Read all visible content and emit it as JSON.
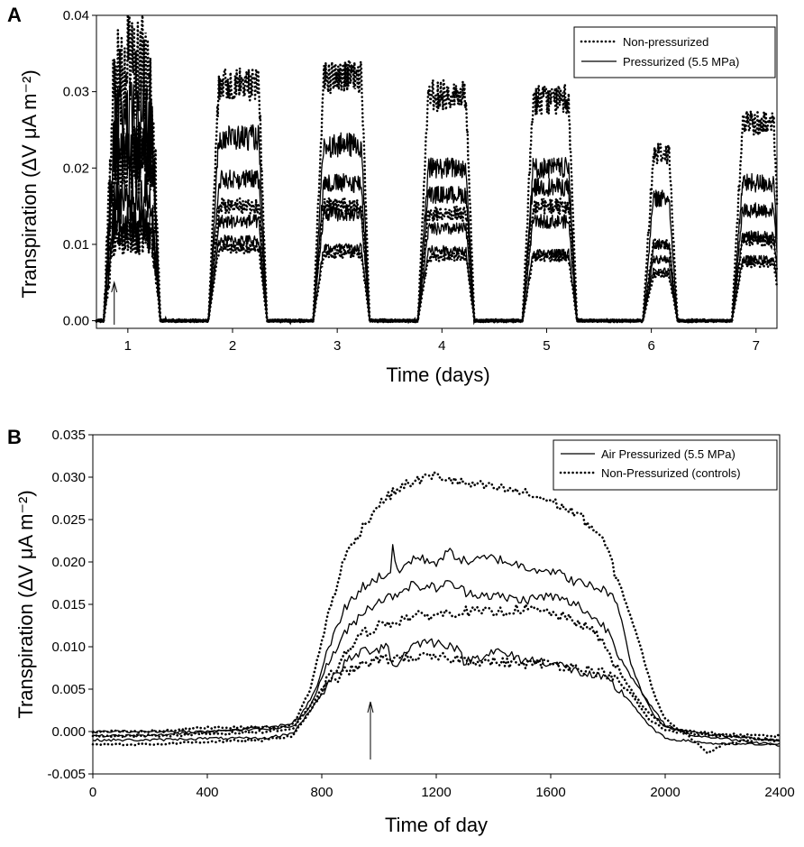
{
  "chart_data": [
    {
      "panel": "A",
      "type": "line",
      "title": "",
      "xlabel": "Time (days)",
      "ylabel": "Transpiration (ΔV μA m⁻²)",
      "xlim": [
        0.7,
        7.2
      ],
      "ylim": [
        -0.001,
        0.04
      ],
      "x_ticks": [
        "1",
        "2",
        "3",
        "4",
        "5",
        "6",
        "7"
      ],
      "y_ticks": [
        "0.00",
        "0.01",
        "0.02",
        "0.03",
        "0.04"
      ],
      "legend": {
        "position": "top-right",
        "entries": [
          "Non-pressurized",
          "Pressurized (5.5 MPa)"
        ]
      },
      "annotation": {
        "type": "arrow",
        "x": 0.87,
        "description": "time of pressurization"
      },
      "series_shape": {
        "x_unit": "days",
        "day_on_offsets": [
          0.8,
          1.8,
          2.8,
          3.8,
          4.8,
          5.95,
          6.8
        ],
        "day_off_offsets": [
          1.28,
          2.3,
          3.28,
          4.28,
          5.26,
          6.22,
          7.22
        ]
      },
      "series": [
        {
          "name": "Non-pressurized",
          "style": "dotted",
          "day_peaks": [
            0.033,
            0.031,
            0.032,
            0.0295,
            0.029,
            0.022,
            0.026
          ]
        },
        {
          "name": "Non-pressurized",
          "style": "dotted",
          "day_peaks": [
            0.021,
            0.015,
            0.015,
            0.014,
            0.015,
            0.01,
            0.0105
          ]
        },
        {
          "name": "Non-pressurized",
          "style": "dotted",
          "day_peaks": [
            0.011,
            0.0095,
            0.0088,
            0.0083,
            0.0083,
            0.006,
            0.0075
          ]
        },
        {
          "name": "Pressurized (5.5 MPa)",
          "style": "solid",
          "day_peaks": [
            0.026,
            0.024,
            0.023,
            0.02,
            0.02,
            0.016,
            0.018
          ]
        },
        {
          "name": "Pressurized (5.5 MPa)",
          "style": "solid",
          "day_peaks": [
            0.022,
            0.0185,
            0.018,
            0.0165,
            0.0175,
            0.01,
            0.0145
          ]
        },
        {
          "name": "Pressurized (5.5 MPa)",
          "style": "solid",
          "day_peaks": [
            0.016,
            0.013,
            0.014,
            0.012,
            0.013,
            0.008,
            0.011
          ]
        },
        {
          "name": "Pressurized (5.5 MPa)",
          "style": "solid",
          "day_peaks": [
            0.0125,
            0.0105,
            0.0095,
            0.0092,
            0.0088,
            0.0065,
            0.008
          ]
        }
      ]
    },
    {
      "panel": "B",
      "type": "line",
      "title": "",
      "xlabel": "Time of day",
      "ylabel": "Transpiration (ΔV μA m⁻²)",
      "xlim": [
        0,
        2400
      ],
      "ylim": [
        -0.005,
        0.035
      ],
      "x_ticks": [
        "0",
        "400",
        "800",
        "1200",
        "1600",
        "2000",
        "2400"
      ],
      "y_ticks": [
        "-0.005",
        "0.000",
        "0.005",
        "0.010",
        "0.015",
        "0.020",
        "0.025",
        "0.030",
        "0.035"
      ],
      "legend": {
        "position": "top-right",
        "entries": [
          "Air Pressurized (5.5 MPa)",
          "Non-Pressurized (controls)"
        ]
      },
      "annotation": {
        "type": "arrow",
        "x": 970,
        "description": "time of pressurization"
      },
      "series": [
        {
          "name": "Air Pressurized (5.5 MPa)",
          "style": "solid",
          "x": [
            0,
            200,
            400,
            600,
            680,
            720,
            780,
            820,
            880,
            940,
            1000,
            1040,
            1050,
            1060,
            1120,
            1200,
            1250,
            1300,
            1400,
            1500,
            1600,
            1700,
            1760,
            1800,
            1840,
            1880,
            1920,
            1960,
            2000,
            2100,
            2200,
            2300,
            2400
          ],
          "y": [
            0.0,
            0.0,
            0.0,
            0.0005,
            0.0008,
            0.0015,
            0.005,
            0.0095,
            0.0145,
            0.017,
            0.0182,
            0.0188,
            0.023,
            0.0185,
            0.0205,
            0.02,
            0.0212,
            0.02,
            0.0205,
            0.0195,
            0.019,
            0.0175,
            0.017,
            0.0165,
            0.0145,
            0.008,
            0.0045,
            0.002,
            0.0005,
            0.0,
            -0.0005,
            -0.0008,
            -0.001
          ]
        },
        {
          "name": "Air Pressurized (5.5 MPa)",
          "style": "solid",
          "x": [
            0,
            200,
            400,
            600,
            700,
            760,
            820,
            880,
            940,
            1000,
            1050,
            1100,
            1200,
            1250,
            1300,
            1400,
            1500,
            1600,
            1700,
            1800,
            1840,
            1880,
            1920,
            1960,
            2000,
            2100,
            2200,
            2300,
            2400
          ],
          "y": [
            -0.0005,
            -0.0005,
            0.0,
            0.0003,
            0.0006,
            0.003,
            0.008,
            0.0115,
            0.014,
            0.0155,
            0.016,
            0.0172,
            0.017,
            0.0175,
            0.0165,
            0.016,
            0.0155,
            0.016,
            0.0148,
            0.012,
            0.009,
            0.0065,
            0.0045,
            0.0025,
            0.0008,
            -0.0005,
            -0.0008,
            -0.0012,
            -0.0015
          ]
        },
        {
          "name": "Air Pressurized (5.5 MPa)",
          "style": "solid",
          "x": [
            0,
            200,
            400,
            600,
            700,
            760,
            820,
            880,
            940,
            1000,
            1030,
            1050,
            1100,
            1150,
            1200,
            1260,
            1300,
            1400,
            1500,
            1600,
            1700,
            1800,
            1880,
            1940,
            2000,
            2100,
            2200,
            2300,
            2400
          ],
          "y": [
            -0.001,
            -0.001,
            -0.0008,
            -0.0008,
            -0.0002,
            0.0025,
            0.0055,
            0.008,
            0.0095,
            0.0098,
            0.0105,
            0.0072,
            0.0098,
            0.0106,
            0.0105,
            0.0102,
            0.0082,
            0.0095,
            0.0085,
            0.0082,
            0.007,
            0.006,
            0.0035,
            0.0008,
            -0.0008,
            -0.0012,
            -0.0015,
            -0.0015,
            -0.0016
          ]
        },
        {
          "name": "Non-Pressurized (controls)",
          "style": "dotted",
          "x": [
            0,
            200,
            400,
            600,
            660,
            700,
            760,
            820,
            880,
            940,
            1000,
            1060,
            1100,
            1150,
            1200,
            1300,
            1400,
            1500,
            1600,
            1700,
            1760,
            1800,
            1820,
            1860,
            1900,
            1960,
            2000,
            2100,
            2150,
            2200,
            2300,
            2400
          ],
          "y": [
            0.0,
            0.0,
            0.0005,
            0.0005,
            0.0005,
            0.0008,
            0.005,
            0.0135,
            0.0205,
            0.024,
            0.0268,
            0.0285,
            0.0292,
            0.0298,
            0.0302,
            0.0292,
            0.0288,
            0.0282,
            0.0272,
            0.0255,
            0.0235,
            0.0215,
            0.019,
            0.0155,
            0.0115,
            0.0045,
            0.0015,
            -0.001,
            -0.0025,
            -0.0015,
            -0.001,
            -0.001
          ]
        },
        {
          "name": "Non-Pressurized (controls)",
          "style": "dotted",
          "x": [
            0,
            200,
            400,
            600,
            700,
            760,
            820,
            880,
            940,
            1000,
            1060,
            1100,
            1200,
            1300,
            1400,
            1500,
            1600,
            1700,
            1760,
            1800,
            1840,
            1880,
            1920,
            2000,
            2100,
            2200,
            2300,
            2400
          ],
          "y": [
            -0.0005,
            -0.0005,
            -0.0003,
            0.0,
            0.0003,
            0.003,
            0.006,
            0.009,
            0.0115,
            0.0125,
            0.013,
            0.0135,
            0.0138,
            0.0142,
            0.014,
            0.0145,
            0.014,
            0.0128,
            0.0115,
            0.0095,
            0.007,
            0.005,
            0.003,
            0.0005,
            0.0,
            -0.0003,
            -0.0005,
            -0.0005
          ]
        },
        {
          "name": "Non-Pressurized (controls)",
          "style": "dotted",
          "x": [
            0,
            200,
            400,
            600,
            700,
            760,
            820,
            880,
            940,
            1000,
            1060,
            1100,
            1200,
            1300,
            1400,
            1500,
            1600,
            1700,
            1800,
            1880,
            1940,
            2000,
            2100,
            2200,
            2300,
            2400
          ],
          "y": [
            -0.0015,
            -0.0015,
            -0.0012,
            -0.001,
            -0.0005,
            0.0025,
            0.0055,
            0.007,
            0.0078,
            0.0085,
            0.0087,
            0.0088,
            0.0087,
            0.0085,
            0.0082,
            0.008,
            0.008,
            0.0075,
            0.0068,
            0.0045,
            0.0015,
            0.0002,
            -0.0003,
            -0.0005,
            -0.0008,
            -0.001
          ]
        }
      ]
    }
  ]
}
